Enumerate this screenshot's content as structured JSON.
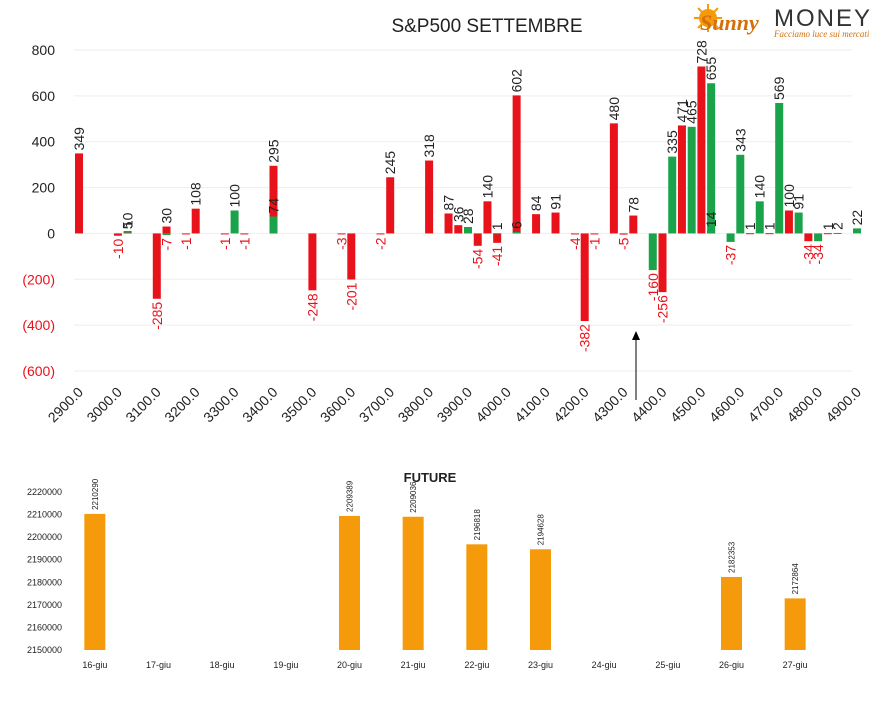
{
  "logo": {
    "word_sunny": "Sunny",
    "word_money": "MONEY",
    "tagline": "Facciamo luce sui mercati"
  },
  "colors": {
    "positive": "#e8121b",
    "negative_bar": "#1aa34a",
    "future_bar": "#f59a0a",
    "neg_label": "#e8121b",
    "text": "#222222"
  },
  "chart_data": [
    {
      "type": "bar",
      "title": "S&P500 SETTEMBRE",
      "xlabel": "",
      "ylabel": "",
      "ylim": [
        -600,
        800
      ],
      "yticks": [
        800,
        600,
        400,
        200,
        0,
        -200,
        -400,
        -600
      ],
      "ytick_labels": [
        "800",
        "600",
        "400",
        "200",
        "0",
        "(200)",
        "(400)",
        "(600)"
      ],
      "grid": true,
      "legend": "none",
      "categories": [
        "2900.0",
        "3000.0",
        "3100.0",
        "3200.0",
        "3300.0",
        "3400.0",
        "3500.0",
        "3600.0",
        "3700.0",
        "3800.0",
        "3900.0",
        "4000.0",
        "4100.0",
        "4200.0",
        "4300.0",
        "4400.0",
        "4500.0",
        "4600.0",
        "4700.0",
        "4800.0",
        "4900.0"
      ],
      "minor_step": 25,
      "x_start": 2900,
      "series": [
        {
          "color": "red",
          "points": [
            [
              2900,
              349
            ],
            [
              3000,
              -10
            ],
            [
              3025,
              10
            ],
            [
              3100,
              -285
            ],
            [
              3125,
              30
            ],
            [
              3175,
              -1
            ],
            [
              3200,
              108
            ],
            [
              3275,
              -1
            ],
            [
              3325,
              -1
            ],
            [
              3400,
              295
            ],
            [
              3500,
              -248
            ],
            [
              3575,
              -3
            ],
            [
              3600,
              -201
            ],
            [
              3675,
              -2
            ],
            [
              3700,
              245
            ],
            [
              3800,
              318
            ],
            [
              3850,
              87
            ],
            [
              3875,
              36
            ],
            [
              3925,
              -54
            ],
            [
              3950,
              140
            ],
            [
              3975,
              -41
            ],
            [
              4025,
              602
            ],
            [
              4075,
              84
            ],
            [
              4125,
              91
            ],
            [
              4175,
              -4
            ],
            [
              4200,
              -382
            ],
            [
              4225,
              -1
            ],
            [
              4275,
              480
            ],
            [
              4300,
              -5
            ],
            [
              4325,
              78
            ],
            [
              4400,
              -256
            ],
            [
              4450,
              471
            ],
            [
              4500,
              728
            ],
            [
              4525,
              14
            ],
            [
              4625,
              1
            ],
            [
              4675,
              1
            ],
            [
              4725,
              100
            ],
            [
              4775,
              -34
            ],
            [
              4825,
              1
            ]
          ]
        },
        {
          "color": "green",
          "points": [
            [
              3025,
              5
            ],
            [
              3125,
              -7
            ],
            [
              3300,
              100
            ],
            [
              3400,
              74
            ],
            [
              3900,
              28
            ],
            [
              3975,
              1
            ],
            [
              4025,
              6
            ],
            [
              4375,
              -160
            ],
            [
              4425,
              335
            ],
            [
              4475,
              465
            ],
            [
              4525,
              655
            ],
            [
              4575,
              -37
            ],
            [
              4600,
              343
            ],
            [
              4650,
              140
            ],
            [
              4700,
              569
            ],
            [
              4750,
              91
            ],
            [
              4800,
              -34
            ],
            [
              4850,
              2
            ],
            [
              4900,
              22
            ]
          ]
        }
      ],
      "annotation": "arrow at 4400"
    },
    {
      "type": "bar",
      "title": "FUTURE",
      "xlabel": "",
      "ylabel": "",
      "ylim": [
        2150000,
        2220000
      ],
      "yticks": [
        2220000,
        2210000,
        2200000,
        2190000,
        2180000,
        2170000,
        2160000,
        2150000
      ],
      "grid": false,
      "legend": "none",
      "categories": [
        "16-giu",
        "17-giu",
        "18-giu",
        "19-giu",
        "20-giu",
        "21-giu",
        "22-giu",
        "23-giu",
        "24-giu",
        "25-giu",
        "26-giu",
        "27-giu"
      ],
      "values": [
        2210290,
        null,
        null,
        null,
        2209389,
        2209036,
        2196818,
        2194628,
        null,
        null,
        2182353,
        2172864
      ],
      "value_labels": [
        "2210290",
        "",
        "",
        "",
        "2209389",
        "2209036",
        "2196818",
        "2194628",
        "",
        "",
        "2182353",
        "2172864"
      ]
    }
  ]
}
